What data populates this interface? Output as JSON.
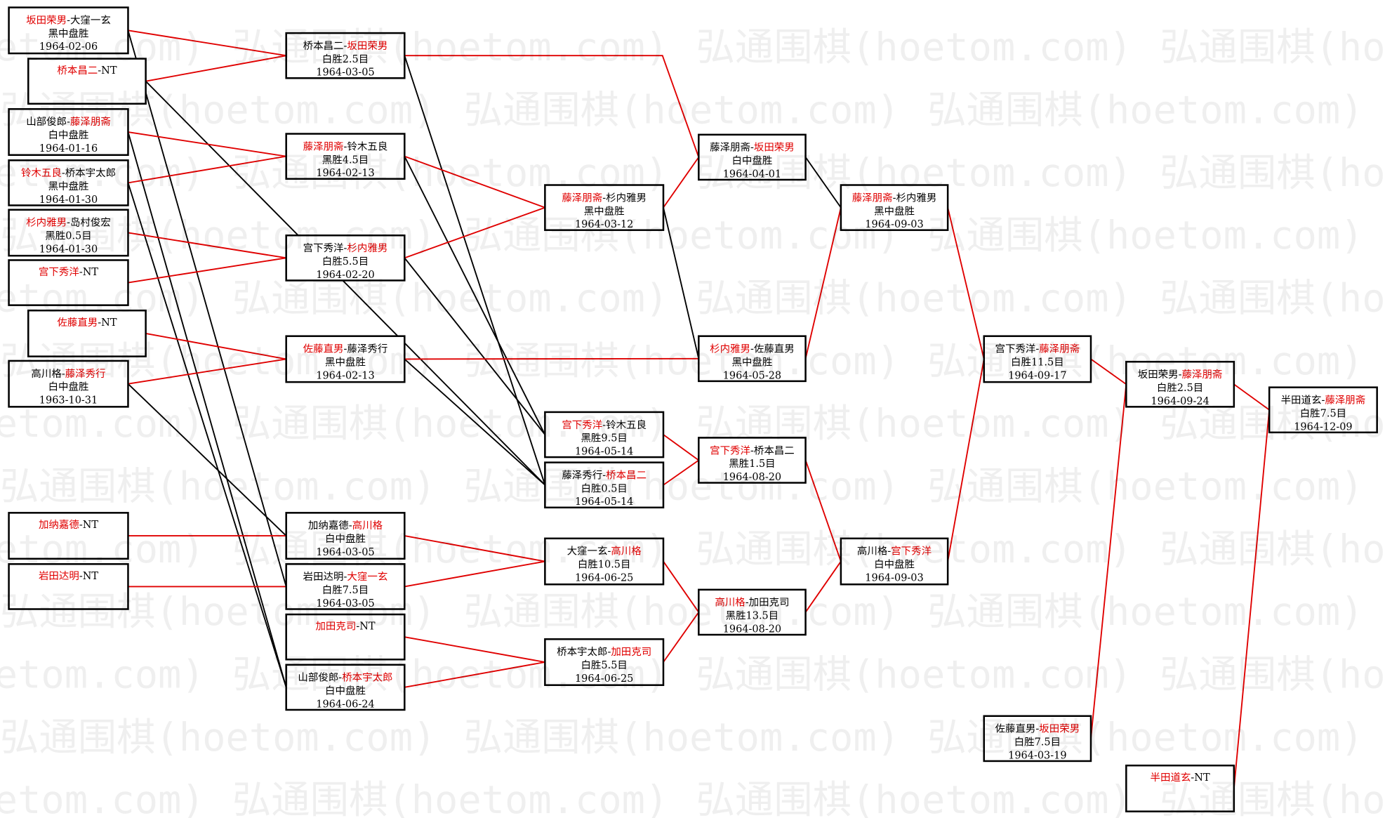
{
  "separator": "-",
  "watermark": "弘通围棋(hoetom.com)",
  "nodes": [
    {
      "players": [
        "坂田荣男",
        "大窪一玄"
      ],
      "winner": 0,
      "result": "黑中盘胜",
      "date": "1964-02-06"
    },
    {
      "players": [
        "桥本昌二",
        "NT"
      ],
      "winner": 0
    },
    {
      "players": [
        "山部俊郎",
        "藤泽朋斋"
      ],
      "winner": 1,
      "result": "白中盘胜",
      "date": "1964-01-16"
    },
    {
      "players": [
        "铃木五良",
        "桥本宇太郎"
      ],
      "winner": 0,
      "result": "黑中盘胜",
      "date": "1964-01-30"
    },
    {
      "players": [
        "杉内雅男",
        "岛村俊宏"
      ],
      "winner": 0,
      "result": "黑胜0.5目",
      "date": "1964-01-30"
    },
    {
      "players": [
        "宫下秀洋",
        "NT"
      ],
      "winner": 0
    },
    {
      "players": [
        "佐藤直男",
        "NT"
      ],
      "winner": 0
    },
    {
      "players": [
        "高川格",
        "藤泽秀行"
      ],
      "winner": 1,
      "result": "白中盘胜",
      "date": "1963-10-31"
    },
    {
      "players": [
        "加纳嘉德",
        "NT"
      ],
      "winner": 0
    },
    {
      "players": [
        "岩田达明",
        "NT"
      ],
      "winner": 0
    },
    {
      "players": [
        "桥本昌二",
        "坂田荣男"
      ],
      "winner": 1,
      "result": "白胜2.5目",
      "date": "1964-03-05"
    },
    {
      "players": [
        "藤泽朋斋",
        "铃木五良"
      ],
      "winner": 0,
      "result": "黑胜4.5目",
      "date": "1964-02-13"
    },
    {
      "players": [
        "宫下秀洋",
        "杉内雅男"
      ],
      "winner": 1,
      "result": "白胜5.5目",
      "date": "1964-02-20"
    },
    {
      "players": [
        "佐藤直男",
        "藤泽秀行"
      ],
      "winner": 0,
      "result": "黑中盘胜",
      "date": "1964-02-13"
    },
    {
      "players": [
        "加纳嘉德",
        "高川格"
      ],
      "winner": 1,
      "result": "白中盘胜",
      "date": "1964-03-05"
    },
    {
      "players": [
        "岩田达明",
        "大窪一玄"
      ],
      "winner": 1,
      "result": "白胜7.5目",
      "date": "1964-03-05"
    },
    {
      "players": [
        "加田克司",
        "NT"
      ],
      "winner": 0
    },
    {
      "players": [
        "山部俊郎",
        "桥本宇太郎"
      ],
      "winner": 1,
      "result": "白中盘胜",
      "date": "1964-06-24"
    },
    {
      "players": [
        "藤泽朋斋",
        "杉内雅男"
      ],
      "winner": 0,
      "result": "黑中盘胜",
      "date": "1964-03-12"
    },
    {
      "players": [
        "宫下秀洋",
        "铃木五良"
      ],
      "winner": 0,
      "result": "黑胜9.5目",
      "date": "1964-05-14"
    },
    {
      "players": [
        "藤泽秀行",
        "桥本昌二"
      ],
      "winner": 1,
      "result": "白胜0.5目",
      "date": "1964-05-14"
    },
    {
      "players": [
        "大窪一玄",
        "高川格"
      ],
      "winner": 1,
      "result": "白胜10.5目",
      "date": "1964-06-25"
    },
    {
      "players": [
        "桥本宇太郎",
        "加田克司"
      ],
      "winner": 1,
      "result": "白胜5.5目",
      "date": "1964-06-25"
    },
    {
      "players": [
        "藤泽朋斋",
        "坂田荣男"
      ],
      "winner": 1,
      "result": "白中盘胜",
      "date": "1964-04-01"
    },
    {
      "players": [
        "杉内雅男",
        "佐藤直男"
      ],
      "winner": 0,
      "result": "黑中盘胜",
      "date": "1964-05-28"
    },
    {
      "players": [
        "宫下秀洋",
        "桥本昌二"
      ],
      "winner": 0,
      "result": "黑胜1.5目",
      "date": "1964-08-20"
    },
    {
      "players": [
        "高川格",
        "加田克司"
      ],
      "winner": 0,
      "result": "黑胜13.5目",
      "date": "1964-08-20"
    },
    {
      "players": [
        "藤泽朋斋",
        "杉内雅男"
      ],
      "winner": 0,
      "result": "黑中盘胜",
      "date": "1964-09-03"
    },
    {
      "players": [
        "高川格",
        "宫下秀洋"
      ],
      "winner": 1,
      "result": "白中盘胜",
      "date": "1964-09-03"
    },
    {
      "players": [
        "宫下秀洋",
        "藤泽朋斋"
      ],
      "winner": 1,
      "result": "白胜11.5目",
      "date": "1964-09-17"
    },
    {
      "players": [
        "佐藤直男",
        "坂田荣男"
      ],
      "winner": 1,
      "result": "白胜7.5目",
      "date": "1964-03-19"
    },
    {
      "players": [
        "坂田荣男",
        "藤泽朋斋"
      ],
      "winner": 1,
      "result": "白胜2.5目",
      "date": "1964-09-24"
    },
    {
      "players": [
        "半田道玄",
        "NT"
      ],
      "winner": 0
    },
    {
      "players": [
        "半田道玄",
        "藤泽朋斋"
      ],
      "winner": 1,
      "result": "白胜7.5目",
      "date": "1964-12-09"
    }
  ]
}
